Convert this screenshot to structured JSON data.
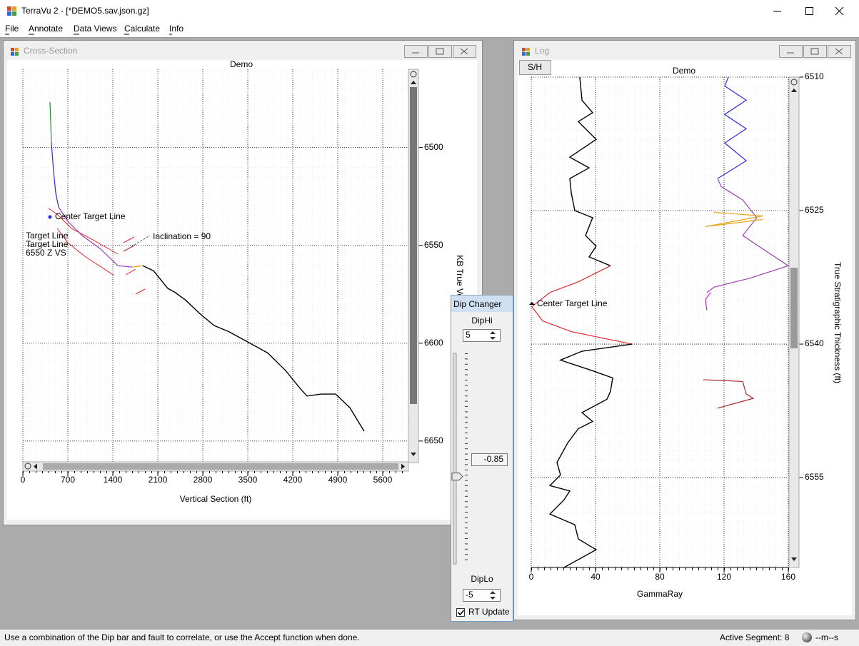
{
  "window": {
    "title": "TerraVu 2 - [*DEMO5.sav.json.gz]"
  },
  "menu": [
    "File",
    "Annotate",
    "Data Views",
    "Calculate",
    "Info"
  ],
  "cross_section": {
    "window_title": "Cross-Section",
    "annotations": [
      "Center Target Line",
      "Target Line",
      "Target Line",
      "6550 Z VS",
      "Inclination = 90"
    ],
    "chart_data": {
      "type": "line",
      "title": "Demo",
      "x_label": "Vertical Section (ft)",
      "y_label": "KB True Vertical Depth",
      "xlim": [
        0,
        6000
      ],
      "ylim": [
        6460,
        6661
      ],
      "y_reversed": true,
      "xticks": [
        0,
        700,
        1400,
        2100,
        2800,
        3500,
        4200,
        4900,
        5600
      ],
      "yticks": [
        6500,
        6550,
        6600,
        6650
      ],
      "grid": true,
      "series": [
        {
          "color": "#2e8b2e",
          "x": [
            422,
            444
          ],
          "y": [
            6476.8,
            6497.6
          ]
        },
        {
          "color": "#2b2bd6",
          "x": [
            444,
            478,
            511,
            556
          ],
          "y": [
            6497.6,
            6512.2,
            6523.1,
            6530.4
          ]
        },
        {
          "color": "#9b3fb5",
          "x": [
            556,
            700,
            922,
            1200,
            1478,
            1700
          ],
          "y": [
            6530.4,
            6537.7,
            6545.0,
            6551.6,
            6560.4,
            6561.1
          ]
        },
        {
          "color": "#e8a317",
          "x": [
            1700,
            1867
          ],
          "y": [
            6561.1,
            6560.4
          ]
        },
        {
          "color": "#000000",
          "x": [
            1867,
            2033,
            2256,
            2367,
            2533,
            2756,
            2978,
            3200,
            3478,
            3811,
            4089,
            4311,
            4422,
            4644,
            4867,
            5089,
            5311
          ],
          "y": [
            6560.4,
            6563,
            6572,
            6574,
            6578,
            6585,
            6591,
            6594,
            6599,
            6605,
            6614,
            6623,
            6627,
            6626,
            6626,
            6633,
            6645
          ]
        }
      ]
    }
  },
  "log": {
    "window_title": "Log",
    "button": "S/H",
    "annotation": "Center Target Line",
    "chart_data": {
      "type": "line",
      "title": "Demo",
      "x_label": "GammaRay",
      "y_label": "True Stratigraphic Thickness (ft)",
      "xlim": [
        0,
        160
      ],
      "ylim": [
        6510,
        6565.1
      ],
      "y_reversed": true,
      "xticks": [
        0,
        40,
        80,
        120,
        160
      ],
      "yticks": [
        6510,
        6525,
        6540,
        6555
      ],
      "grid": true,
      "series": [
        {
          "color": "#000000",
          "x": [
            30.2,
            31.6,
            38.2,
            29.3,
            40.4,
            24.0,
            36.0,
            24.0,
            24.9,
            27.1,
            38.2,
            33.8,
            40.4,
            36.0,
            49.3
          ],
          "y": [
            6510,
            6512.6,
            6514.0,
            6515.0,
            6517.0,
            6519.0,
            6520.2,
            6521.4,
            6523.0,
            6525.0,
            6525.8,
            6527.8,
            6529.0,
            6530.2,
            6531.2
          ]
        },
        {
          "color": "#e8232a",
          "x": [
            49.3,
            29.3,
            11.6,
            0.4,
            7.1,
            24.9,
            62.7
          ],
          "y": [
            6531.2,
            6533.0,
            6534.2,
            6535.8,
            6537.4,
            6538.6,
            6540.0
          ]
        },
        {
          "color": "#000000",
          "x": [
            62.7,
            31.6,
            18.2,
            38.2,
            50.7,
            49.3,
            47.1,
            31.6,
            38.2,
            29.3,
            22.7,
            16.0,
            18.2,
            11.6,
            24.0,
            20.4,
            11.6,
            27.1,
            29.3,
            40.4,
            20.4
          ],
          "y": [
            6540.0,
            6540.8,
            6541.8,
            6543.0,
            6543.8,
            6545.3,
            6546.2,
            6547.7,
            6548.7,
            6549.5,
            6551.1,
            6553.3,
            6554.7,
            6555.9,
            6556.5,
            6557.5,
            6559.1,
            6560.3,
            6561.9,
            6563.1,
            6565.1
          ]
        },
        {
          "color": "#2b2bd6",
          "x": [
            122.7,
            120.4,
            133.8,
            120.4,
            133.8,
            120.4,
            133.8,
            116.0
          ],
          "y": [
            6510,
            6511.0,
            6512.6,
            6514.2,
            6515.8,
            6517.4,
            6519.4,
            6521.4
          ]
        },
        {
          "color": "#9b3fb5",
          "x": [
            116.0,
            118.2,
            131.6,
            140.4,
            131.6,
            144.9,
            160,
            136.0,
            113.8,
            109.3
          ],
          "y": [
            6521.4,
            6522.3,
            6523.8,
            6525.8,
            6527.8,
            6529.4,
            6531.2,
            6532.6,
            6533.6,
            6534.2
          ]
        },
        {
          "color": "#e8a317",
          "x": [
            113.8,
            144.0,
            108.4,
            144.0
          ],
          "y": [
            6525.2,
            6525.6,
            6526.8,
            6526.0
          ]
        },
        {
          "color": "#e020c0",
          "x": [
            111.6,
            108.4,
            109.3
          ],
          "y": [
            6534.2,
            6535.0,
            6536.2
          ]
        },
        {
          "color": "#a52a2a",
          "x": [
            107.1,
            131.6,
            133.8,
            138.2,
            116.0
          ],
          "y": [
            6544.0,
            6544.2,
            6545.6,
            6546.1,
            6547.2
          ]
        }
      ]
    }
  },
  "dip_changer": {
    "title": "Dip Changer",
    "dip_hi_label": "DipHi",
    "dip_hi": 5,
    "dip_value": -0.85,
    "dip_lo_label": "DipLo",
    "dip_lo": -5,
    "rt_update_label": "RT Update",
    "rt_update": true
  },
  "status": {
    "message": "Use a combination of the Dip bar and fault to correlate, or use the Accept function when done.",
    "active_segment": "Active Segment: 8",
    "clock": "--m--s"
  }
}
